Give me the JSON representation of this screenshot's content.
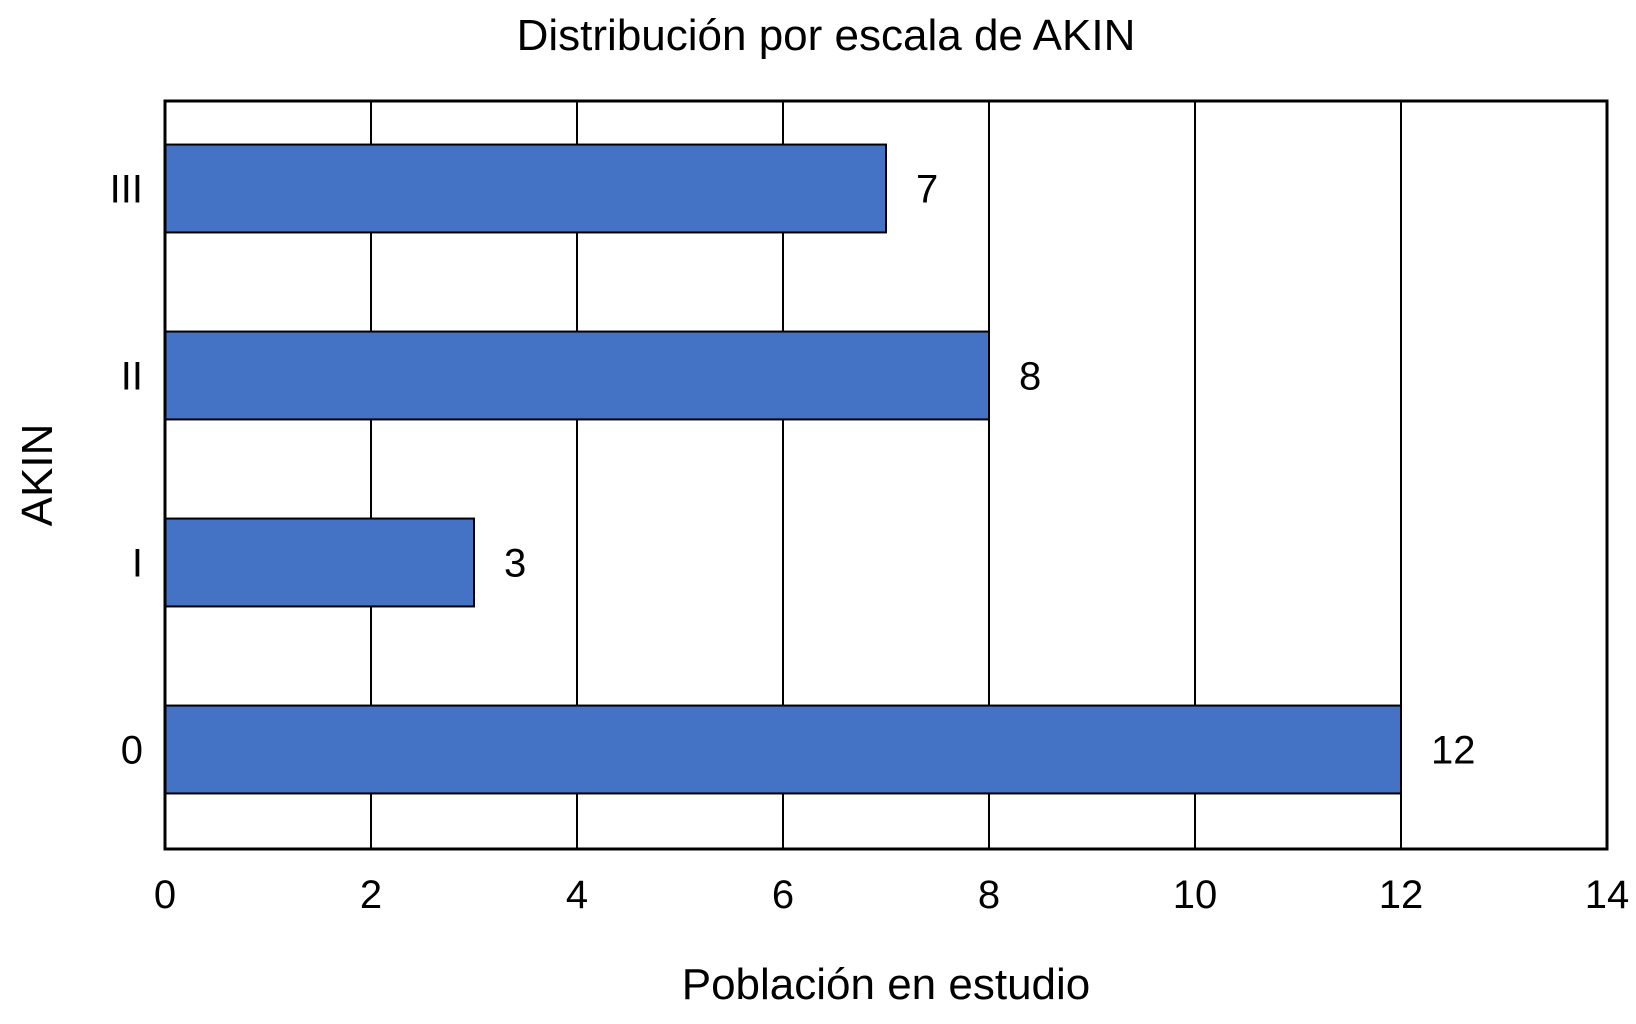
{
  "chart_data": {
    "type": "bar",
    "orientation": "horizontal",
    "title": "Distribución por escala de AKIN",
    "xlabel": "Población en estudio",
    "ylabel": "AKIN",
    "categories": [
      "0",
      "I",
      "II",
      "III"
    ],
    "values": [
      12,
      3,
      8,
      7
    ],
    "xlim": [
      0,
      14
    ],
    "xticks": [
      "0",
      "2",
      "4",
      "6",
      "8",
      "10",
      "12",
      "14"
    ],
    "grid": true,
    "bar_color": "#4472C4",
    "legend": "none"
  }
}
